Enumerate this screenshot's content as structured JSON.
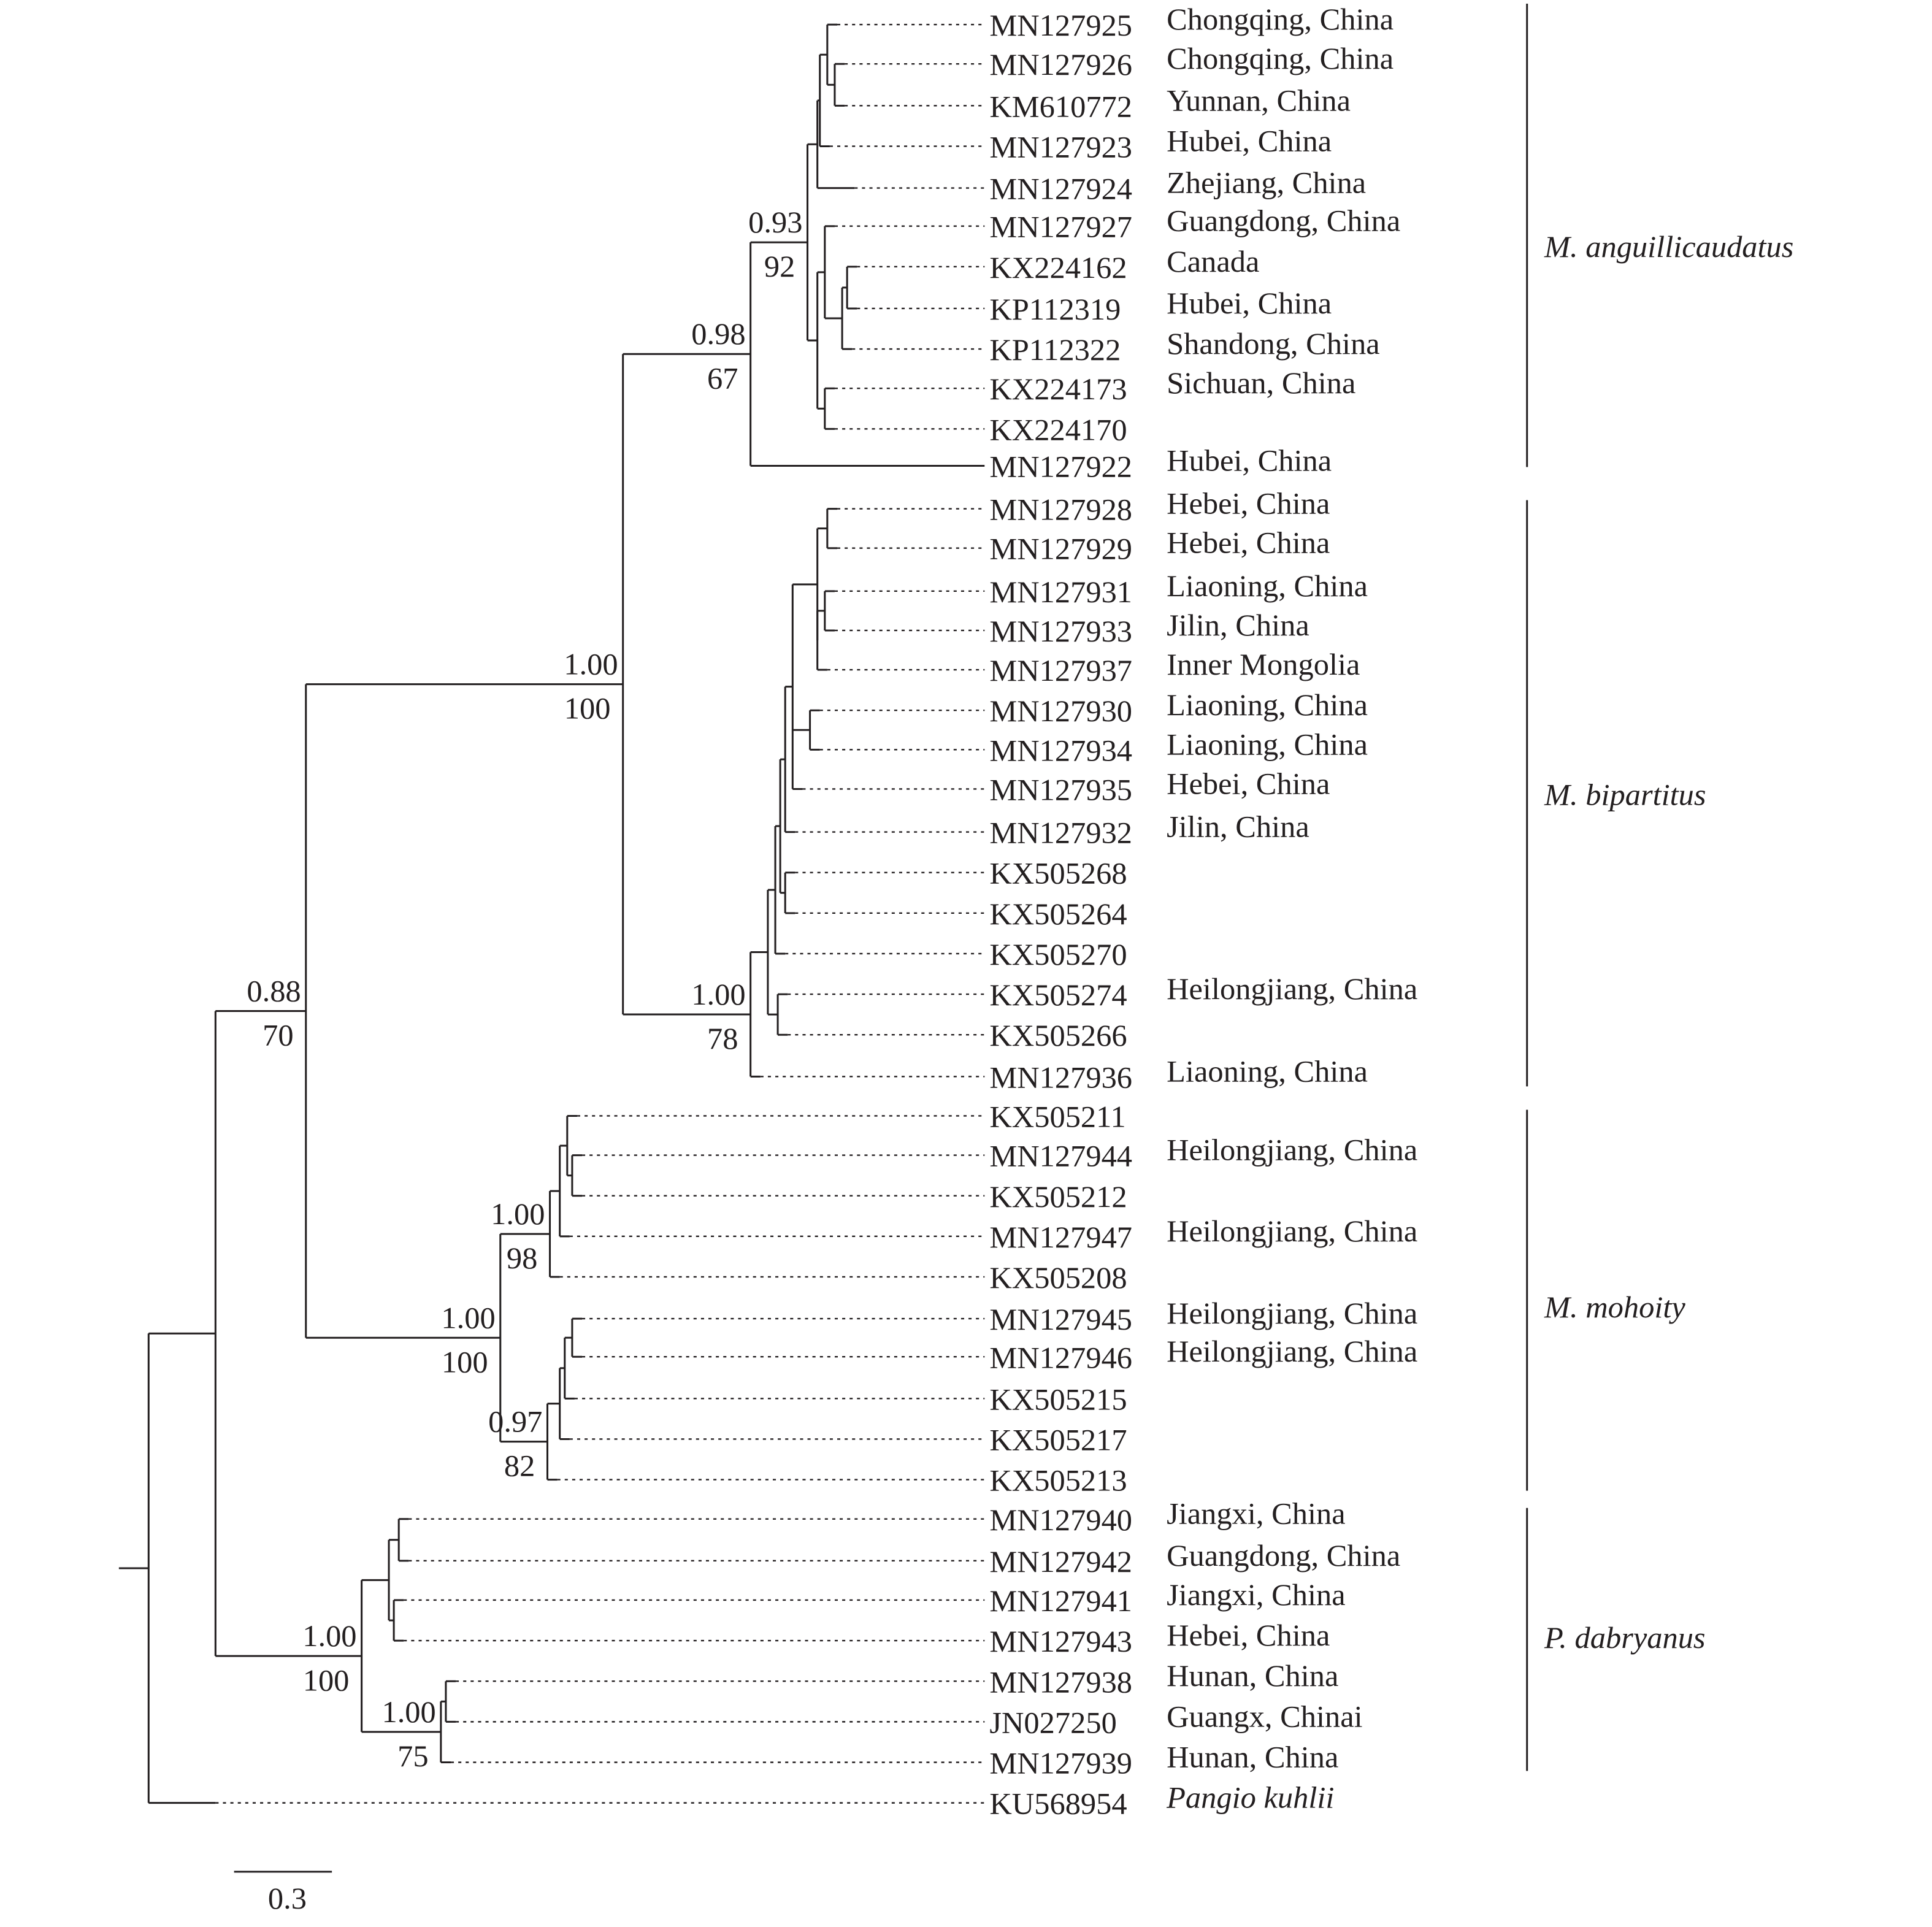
{
  "leaves": [
    {
      "accession": "MN127925",
      "location": "Chongqing, China"
    },
    {
      "accession": "MN127926",
      "location": "Chongqing, China"
    },
    {
      "accession": "KM610772",
      "location": "Yunnan, China"
    },
    {
      "accession": "MN127923",
      "location": "Hubei, China"
    },
    {
      "accession": "MN127924",
      "location": "Zhejiang, China"
    },
    {
      "accession": "MN127927",
      "location": "Guangdong, China"
    },
    {
      "accession": "KX224162",
      "location": "Canada"
    },
    {
      "accession": "KP112319",
      "location": "Hubei, China"
    },
    {
      "accession": "KP112322",
      "location": "Shandong, China"
    },
    {
      "accession": "KX224173",
      "location": "Sichuan, China"
    },
    {
      "accession": "KX224170",
      "location": ""
    },
    {
      "accession": "MN127922",
      "location": "Hubei, China"
    },
    {
      "accession": "MN127928",
      "location": "Hebei, China"
    },
    {
      "accession": "MN127929",
      "location": "Hebei, China"
    },
    {
      "accession": "MN127931",
      "location": "Liaoning, China"
    },
    {
      "accession": "MN127933",
      "location": "Jilin, China"
    },
    {
      "accession": "MN127937",
      "location": "Inner Mongolia"
    },
    {
      "accession": "MN127930",
      "location": "Liaoning, China"
    },
    {
      "accession": "MN127934",
      "location": "Liaoning, China"
    },
    {
      "accession": "MN127935",
      "location": "Hebei, China"
    },
    {
      "accession": "MN127932",
      "location": "Jilin, China"
    },
    {
      "accession": "KX505268",
      "location": ""
    },
    {
      "accession": "KX505264",
      "location": ""
    },
    {
      "accession": "KX505270",
      "location": ""
    },
    {
      "accession": "KX505274",
      "location": "Heilongjiang, China"
    },
    {
      "accession": "KX505266",
      "location": ""
    },
    {
      "accession": "MN127936",
      "location": "Liaoning, China"
    },
    {
      "accession": "KX505211",
      "location": ""
    },
    {
      "accession": "MN127944",
      "location": "Heilongjiang, China"
    },
    {
      "accession": "KX505212",
      "location": ""
    },
    {
      "accession": "MN127947",
      "location": "Heilongjiang, China"
    },
    {
      "accession": "KX505208",
      "location": ""
    },
    {
      "accession": "MN127945",
      "location": "Heilongjiang, China"
    },
    {
      "accession": "MN127946",
      "location": "Heilongjiang, China"
    },
    {
      "accession": "KX505215",
      "location": ""
    },
    {
      "accession": "KX505217",
      "location": ""
    },
    {
      "accession": "KX505213",
      "location": ""
    },
    {
      "accession": "MN127940",
      "location": "Jiangxi, China"
    },
    {
      "accession": "MN127942",
      "location": "Guangdong, China"
    },
    {
      "accession": "MN127941",
      "location": "Jiangxi, China"
    },
    {
      "accession": "MN127943",
      "location": "Hebei, China"
    },
    {
      "accession": "MN127938",
      "location": "Hunan, China"
    },
    {
      "accession": "JN027250",
      "location": "Guangx, Chinai"
    },
    {
      "accession": "MN127939",
      "location": "Hunan, China"
    },
    {
      "accession": "KU568954",
      "location": "Pangio kuhlii",
      "italic": true
    }
  ],
  "supports": {
    "anguillicaudatus_core": {
      "posterior": "0.93",
      "bootstrap": "92"
    },
    "anguillicaudatus": {
      "posterior": "0.98",
      "bootstrap": "67"
    },
    "bipartitus": {
      "posterior": "1.00",
      "bootstrap": "78"
    },
    "anguillicaudatus_bipartitus": {
      "posterior": "1.00",
      "bootstrap": "100"
    },
    "mohoity_a": {
      "posterior": "1.00",
      "bootstrap": "98"
    },
    "mohoity_b": {
      "posterior": "0.97",
      "bootstrap": "82"
    },
    "mohoity": {
      "posterior": "1.00",
      "bootstrap": "100"
    },
    "misgurnus": {
      "posterior": "0.88",
      "bootstrap": "70"
    },
    "dabryanus_b": {
      "posterior": "1.00",
      "bootstrap": "75"
    },
    "dabryanus": {
      "posterior": "1.00",
      "bootstrap": "100"
    }
  },
  "clades": [
    "M. anguillicaudatus",
    "M. bipartitus",
    "M. mohoity",
    "P. dabryanus"
  ],
  "scale_bar": {
    "label": "0.3",
    "value": 0.3
  },
  "colors": {
    "line": "#231f20",
    "background": "#ffffff"
  }
}
